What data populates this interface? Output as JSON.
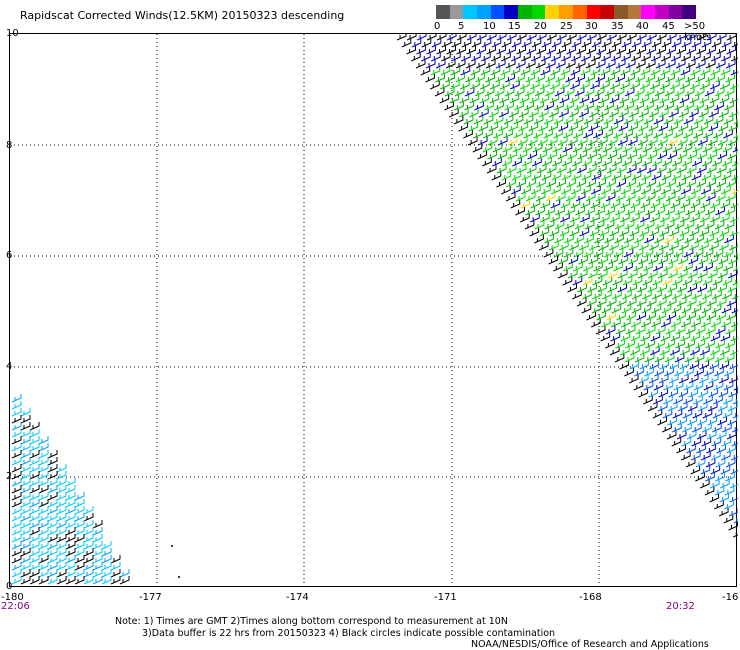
{
  "title": "Rapidscat Corrected Winds(12.5KM) 20150323 descending",
  "legend": {
    "colors": [
      "#555555",
      "#999999",
      "#00c8ff",
      "#00a0ff",
      "#0050ff",
      "#0000c0",
      "#00b400",
      "#00d800",
      "#ffd200",
      "#ffa000",
      "#ff6400",
      "#ff0000",
      "#c80000",
      "#8b5a2b",
      "#b4783c",
      "#ff00ff",
      "#c000c0",
      "#8000a0",
      "#400080"
    ],
    "ticks": [
      "0",
      "5",
      "10",
      "15",
      "20",
      "25",
      "30",
      "35",
      "40",
      "45",
      ">50 knots"
    ]
  },
  "y_axis": {
    "labels": [
      "10",
      "8",
      "6",
      "4",
      "2",
      "0"
    ]
  },
  "x_axis": {
    "labels": [
      "-180",
      "-177",
      "-174",
      "-171",
      "-168",
      "-16"
    ]
  },
  "times": {
    "left": "22:06",
    "right": "20:32"
  },
  "notes": {
    "line1": "Note: 1) Times are GMT 2)Times along bottom correspond to measurement at 10N",
    "line2": "3)Data buffer is 22 hrs from 20150323 4) Black circles indicate possible contamination",
    "credit": "NOAA/NESDIS/Office of Research and Applications"
  }
}
